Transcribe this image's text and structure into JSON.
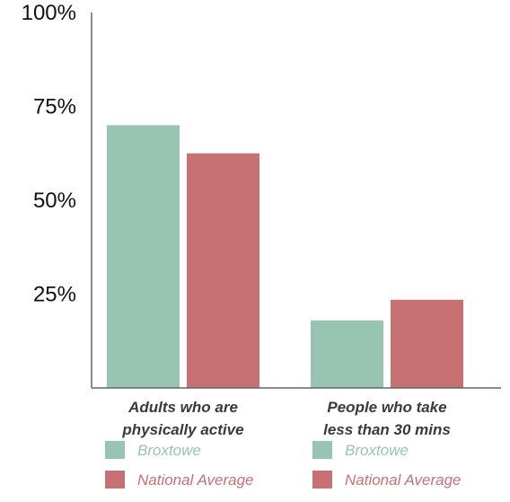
{
  "chart_data": {
    "type": "bar",
    "categories": [
      [
        "Adults who are",
        "physically active"
      ],
      [
        "People who take",
        "less than 30 mins"
      ]
    ],
    "series": [
      {
        "name": "Broxtowe",
        "color": "#97c5b2",
        "values": [
          70,
          18
        ]
      },
      {
        "name": "National Average",
        "color": "#c87175",
        "values": [
          62.5,
          23.5
        ]
      }
    ],
    "ylim": [
      0,
      100
    ],
    "yticks": [
      {
        "value": 25,
        "label": "25%"
      },
      {
        "value": 50,
        "label": "50%"
      },
      {
        "value": 75,
        "label": "75%"
      },
      {
        "value": 100,
        "label": "100%"
      }
    ],
    "legend_placement": "below each category",
    "grid": false,
    "axis_color": "#666666"
  }
}
